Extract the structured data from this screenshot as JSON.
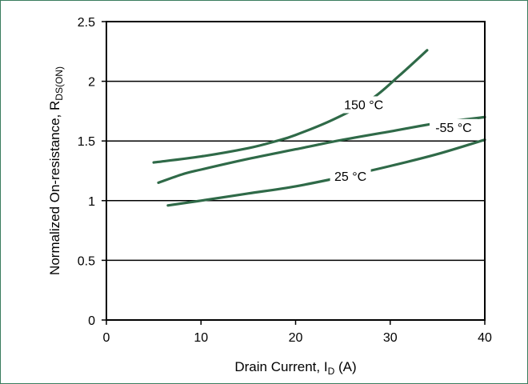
{
  "chart_data": {
    "type": "line",
    "title": "",
    "xlabel": {
      "main": "Drain Current, I",
      "sub": "D",
      "suffix": " (A)"
    },
    "ylabel": {
      "main": "Normalized On-resistance, R",
      "sub": "DS(ON)"
    },
    "xlim": [
      0,
      40
    ],
    "ylim": [
      0,
      2.5
    ],
    "xticks": [
      0,
      10,
      20,
      30,
      40
    ],
    "xtick_labels": [
      "0",
      "10",
      "20",
      "30",
      "40"
    ],
    "yticks": [
      0,
      0.5,
      1,
      1.5,
      2,
      2.5
    ],
    "ytick_labels": [
      "0",
      "0.5",
      "1",
      "1.5",
      "2",
      "2.5"
    ],
    "grid": "horizontal",
    "legend": "none",
    "series": [
      {
        "name": "150 °C",
        "x": [
          5,
          10,
          15,
          18,
          20,
          24,
          28,
          31,
          33.9
        ],
        "y": [
          1.32,
          1.37,
          1.44,
          1.5,
          1.55,
          1.68,
          1.85,
          2.05,
          2.26
        ]
      },
      {
        "name": "-55 °C",
        "x": [
          5.5,
          8,
          10,
          15,
          20,
          25,
          30,
          35,
          40
        ],
        "y": [
          1.15,
          1.22,
          1.26,
          1.35,
          1.43,
          1.51,
          1.58,
          1.65,
          1.7
        ]
      },
      {
        "name": "25 °C",
        "x": [
          6.5,
          10,
          15,
          20,
          25,
          30,
          35,
          40
        ],
        "y": [
          0.96,
          1.0,
          1.06,
          1.12,
          1.2,
          1.29,
          1.39,
          1.51
        ]
      }
    ],
    "annotations": [
      {
        "text": "150 °C",
        "x": 27.2,
        "y": 1.8
      },
      {
        "text": "-55 °C",
        "x": 36.7,
        "y": 1.61
      },
      {
        "text": "25 °C",
        "x": 25.8,
        "y": 1.2
      }
    ]
  },
  "colors": {
    "line": "#2f6a48",
    "frame": "#3a7c5e"
  }
}
